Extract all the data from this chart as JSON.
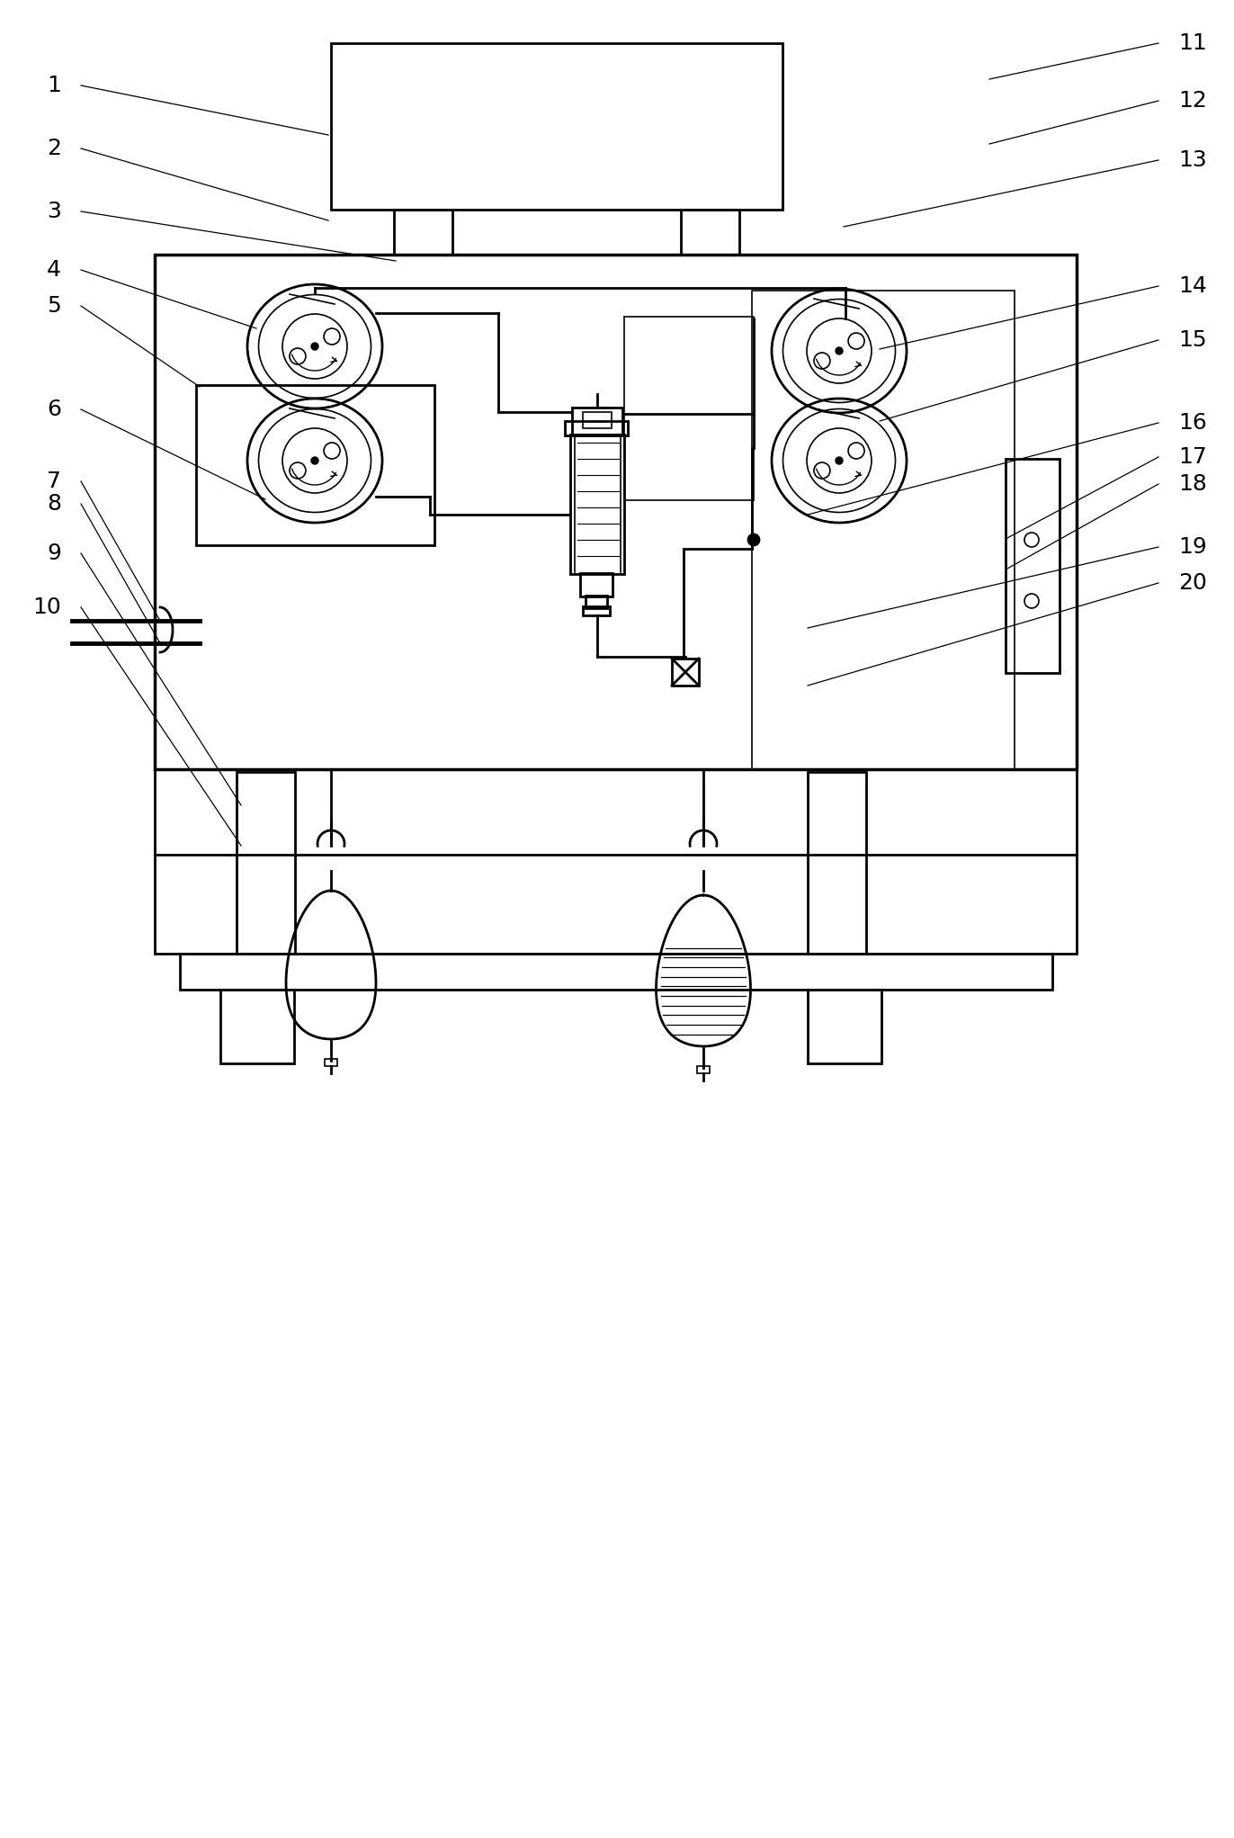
{
  "bg_color": "#ffffff",
  "lc": "#000000",
  "lw": 2.0,
  "tlw": 1.2,
  "font_size": 18,
  "labels_left": [
    [
      "1",
      68,
      95,
      365,
      150
    ],
    [
      "2",
      68,
      165,
      365,
      245
    ],
    [
      "3",
      68,
      235,
      440,
      290
    ],
    [
      "4",
      68,
      300,
      285,
      365
    ],
    [
      "5",
      68,
      340,
      222,
      430
    ],
    [
      "6",
      68,
      455,
      295,
      555
    ],
    [
      "7",
      68,
      535,
      178,
      690
    ],
    [
      "8",
      68,
      560,
      178,
      715
    ],
    [
      "9",
      68,
      615,
      268,
      895
    ],
    [
      "10",
      68,
      675,
      268,
      940
    ]
  ],
  "labels_right": [
    [
      "11",
      1310,
      48,
      1100,
      88
    ],
    [
      "12",
      1310,
      112,
      1100,
      160
    ],
    [
      "13",
      1310,
      178,
      938,
      252
    ],
    [
      "14",
      1310,
      318,
      978,
      388
    ],
    [
      "15",
      1310,
      378,
      978,
      468
    ],
    [
      "16",
      1310,
      470,
      898,
      572
    ],
    [
      "17",
      1310,
      508,
      1120,
      598
    ],
    [
      "18",
      1310,
      538,
      1120,
      632
    ],
    [
      "19",
      1310,
      608,
      898,
      698
    ],
    [
      "20",
      1310,
      648,
      898,
      762
    ]
  ]
}
